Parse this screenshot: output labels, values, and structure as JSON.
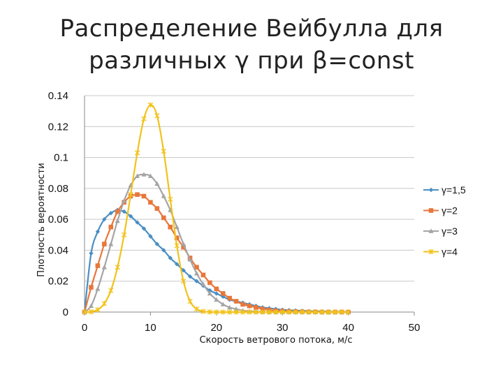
{
  "title_line1": "Распределение Вейбулла для",
  "title_line2": "различных γ при β=const",
  "colors": {
    "series1": "#4a8fc4",
    "series2": "#e8773a",
    "series3": "#a5a5a5",
    "series4": "#f2c21a",
    "grid": "#c8c8c8",
    "axis": "#888888"
  },
  "chart_data": {
    "type": "line",
    "title": "Распределение Вейбулла для различных γ при β=const",
    "xlabel": "Скорость ветрового потока, м/с",
    "ylabel": "Плотность вероятности",
    "xlim": [
      0,
      50
    ],
    "ylim": [
      0,
      0.14
    ],
    "xticks": [
      0,
      10,
      20,
      30,
      40,
      50
    ],
    "xtick_labels": [
      "0",
      "10",
      "20",
      "30",
      "40",
      "50"
    ],
    "yticks": [
      0,
      0.02,
      0.04,
      0.06,
      0.08,
      0.1,
      0.12,
      0.14
    ],
    "ytick_labels": [
      "0",
      "0.02",
      "0.04",
      "0.06",
      "0.08",
      "0.1",
      "0.12",
      "0.14"
    ],
    "grid": "horizontal",
    "legend_position": "right",
    "x": [
      0,
      1,
      2,
      3,
      4,
      5,
      6,
      7,
      8,
      9,
      10,
      11,
      12,
      13,
      14,
      15,
      16,
      17,
      18,
      19,
      20,
      21,
      22,
      23,
      24,
      25,
      26,
      27,
      28,
      29,
      30,
      31,
      32,
      33,
      34,
      35,
      36,
      37,
      38,
      39,
      40
    ],
    "series": [
      {
        "name": "γ=1,5",
        "marker": "diamond",
        "values": [
          0,
          0.038,
          0.052,
          0.06,
          0.064,
          0.066,
          0.065,
          0.062,
          0.058,
          0.054,
          0.049,
          0.044,
          0.04,
          0.035,
          0.031,
          0.027,
          0.023,
          0.02,
          0.017,
          0.014,
          0.012,
          0.01,
          0.008,
          0.007,
          0.006,
          0.005,
          0.004,
          0.003,
          0.0025,
          0.002,
          0.0015,
          0.0012,
          0.001,
          0.0008,
          0.0006,
          0.0005,
          0.0004,
          0.0003,
          0.0002,
          0.0002,
          0.0001
        ]
      },
      {
        "name": "γ=2",
        "marker": "square",
        "values": [
          0,
          0.016,
          0.03,
          0.044,
          0.055,
          0.065,
          0.071,
          0.075,
          0.076,
          0.075,
          0.071,
          0.067,
          0.061,
          0.055,
          0.048,
          0.042,
          0.035,
          0.029,
          0.024,
          0.019,
          0.015,
          0.012,
          0.009,
          0.007,
          0.005,
          0.004,
          0.003,
          0.002,
          0.0013,
          0.0009,
          0.0006,
          0.0004,
          0.0003,
          0.0002,
          0.0001,
          0.0001,
          0,
          0,
          0,
          0,
          0
        ]
      },
      {
        "name": "γ=3",
        "marker": "triangle",
        "values": [
          0,
          0.004,
          0.015,
          0.029,
          0.044,
          0.059,
          0.072,
          0.082,
          0.088,
          0.089,
          0.088,
          0.083,
          0.075,
          0.066,
          0.055,
          0.044,
          0.034,
          0.025,
          0.018,
          0.012,
          0.008,
          0.005,
          0.003,
          0.002,
          0.001,
          0.0005,
          0.0003,
          0.0001,
          0,
          0,
          0,
          0,
          0,
          0,
          0,
          0,
          0,
          0,
          0,
          0,
          0
        ]
      },
      {
        "name": "γ=4",
        "marker": "star",
        "values": [
          0,
          0.0002,
          0.0015,
          0.0055,
          0.014,
          0.029,
          0.05,
          0.076,
          0.103,
          0.125,
          0.134,
          0.127,
          0.104,
          0.073,
          0.043,
          0.02,
          0.007,
          0.002,
          0.0004,
          0.0001,
          0,
          0,
          0,
          0,
          0,
          0,
          0,
          0,
          0,
          0,
          0,
          0,
          0,
          0,
          0,
          0,
          0,
          0,
          0,
          0,
          0
        ]
      }
    ]
  }
}
